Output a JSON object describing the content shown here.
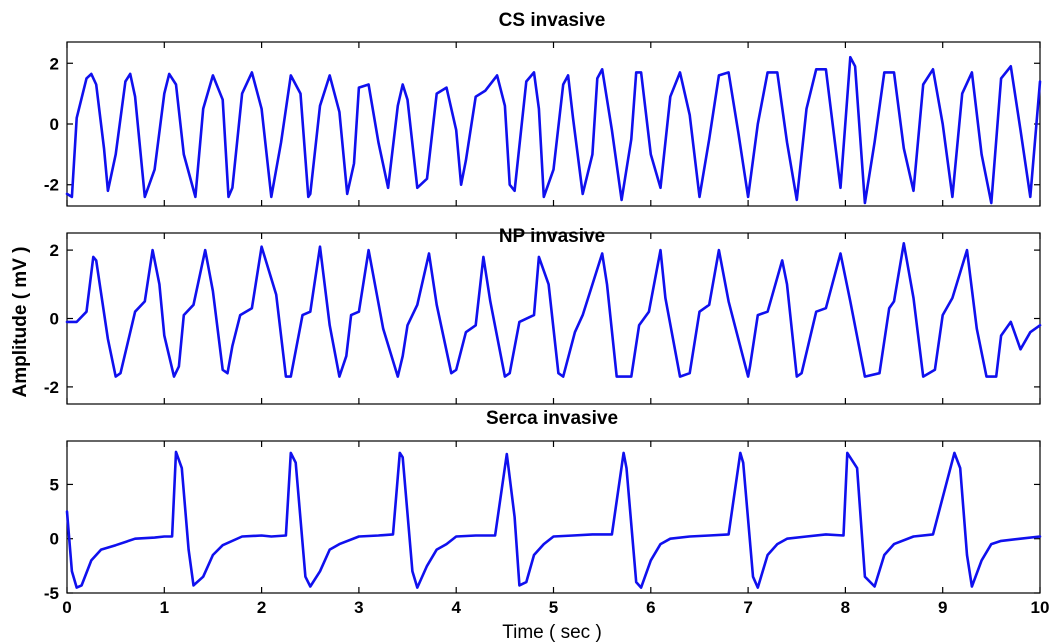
{
  "chart_data": [
    {
      "type": "line",
      "title": "CS invasive",
      "xlim": [
        0,
        10
      ],
      "ylim": [
        -2.7,
        2.7
      ],
      "yticks": [
        2,
        0,
        -2
      ],
      "ytick_labels": [
        "2",
        "0",
        "-2"
      ],
      "xticks": [
        0,
        1,
        2,
        3,
        4,
        5,
        6,
        7,
        8,
        9,
        10
      ],
      "xtick_labels": [],
      "color": "#1010ee",
      "series": [
        {
          "x": [
            0,
            0.05,
            0.1,
            0.2,
            0.25,
            0.3,
            0.38,
            0.42,
            0.5,
            0.6,
            0.65,
            0.7,
            0.8,
            0.9,
            1.0,
            1.05,
            1.12,
            1.2,
            1.32,
            1.4,
            1.5,
            1.6,
            1.66,
            1.7,
            1.8,
            1.9,
            2.0,
            2.1,
            2.2,
            2.3,
            2.4,
            2.48,
            2.5,
            2.6,
            2.7,
            2.8,
            2.88,
            2.95,
            3.0,
            3.1,
            3.2,
            3.3,
            3.4,
            3.45,
            3.5,
            3.6,
            3.7,
            3.8,
            3.9,
            4.0,
            4.05,
            4.1,
            4.2,
            4.3,
            4.42,
            4.5,
            4.55,
            4.6,
            4.72,
            4.8,
            4.85,
            4.9,
            5.0,
            5.1,
            5.15,
            5.2,
            5.3,
            5.4,
            5.45,
            5.5,
            5.6,
            5.7,
            5.8,
            5.85,
            5.9,
            6.0,
            6.1,
            6.2,
            6.3,
            6.4,
            6.5,
            6.6,
            6.7,
            6.8,
            6.9,
            7.0,
            7.1,
            7.2,
            7.3,
            7.4,
            7.5,
            7.6,
            7.7,
            7.8,
            7.95,
            8.05,
            8.1,
            8.2,
            8.3,
            8.4,
            8.5,
            8.6,
            8.7,
            8.8,
            8.9,
            9.0,
            9.1,
            9.2,
            9.3,
            9.4,
            9.5,
            9.6,
            9.7,
            9.8,
            9.9,
            10.0
          ],
          "y": [
            -2.3,
            -2.4,
            0.2,
            1.5,
            1.65,
            1.3,
            -0.8,
            -2.2,
            -1.0,
            1.4,
            1.65,
            0.9,
            -2.4,
            -1.5,
            1.0,
            1.65,
            1.3,
            -1.0,
            -2.4,
            0.5,
            1.6,
            0.8,
            -2.4,
            -2.1,
            1.0,
            1.7,
            0.5,
            -2.4,
            -0.6,
            1.6,
            1.0,
            -2.4,
            -2.3,
            0.6,
            1.6,
            0.4,
            -2.3,
            -1.3,
            1.2,
            1.3,
            -0.6,
            -2.1,
            0.6,
            1.3,
            0.8,
            -2.1,
            -1.8,
            1.0,
            1.2,
            -0.2,
            -2.0,
            -1.2,
            0.9,
            1.1,
            1.6,
            0.6,
            -2.0,
            -2.2,
            1.4,
            1.7,
            0.5,
            -2.4,
            -1.5,
            1.3,
            1.6,
            0.2,
            -2.3,
            -1.0,
            1.5,
            1.8,
            -0.2,
            -2.5,
            -0.5,
            1.7,
            1.7,
            -1.0,
            -2.1,
            0.9,
            1.7,
            0.3,
            -2.4,
            -0.5,
            1.6,
            1.7,
            -0.3,
            -2.4,
            0.0,
            1.7,
            1.7,
            -0.6,
            -2.5,
            0.5,
            1.8,
            1.8,
            -2.1,
            2.2,
            1.9,
            -2.6,
            -0.6,
            1.7,
            1.7,
            -0.8,
            -2.2,
            1.3,
            1.8,
            0.0,
            -2.4,
            1.0,
            1.7,
            -1.0,
            -2.6,
            1.5,
            1.9,
            -0.2,
            -2.4,
            1.4
          ]
        }
      ]
    },
    {
      "type": "line",
      "title": "NP invasive",
      "xlim": [
        0,
        10
      ],
      "ylim": [
        -2.5,
        2.5
      ],
      "yticks": [
        2,
        0,
        -2
      ],
      "ytick_labels": [
        "2",
        "0",
        "-2"
      ],
      "xticks": [
        0,
        1,
        2,
        3,
        4,
        5,
        6,
        7,
        8,
        9,
        10
      ],
      "xtick_labels": [],
      "ylabel": "Amplitude ( mV )",
      "color": "#1010ee",
      "series": [
        {
          "x": [
            0,
            0.1,
            0.2,
            0.27,
            0.3,
            0.42,
            0.5,
            0.55,
            0.7,
            0.8,
            0.88,
            0.95,
            1.0,
            1.1,
            1.15,
            1.2,
            1.3,
            1.42,
            1.5,
            1.6,
            1.65,
            1.7,
            1.78,
            1.9,
            2.0,
            2.15,
            2.25,
            2.3,
            2.42,
            2.5,
            2.6,
            2.7,
            2.8,
            2.87,
            2.92,
            3.0,
            3.1,
            3.25,
            3.4,
            3.45,
            3.5,
            3.6,
            3.72,
            3.8,
            3.95,
            4.0,
            4.1,
            4.2,
            4.28,
            4.35,
            4.5,
            4.55,
            4.65,
            4.8,
            4.85,
            4.95,
            5.05,
            5.1,
            5.22,
            5.3,
            5.5,
            5.55,
            5.65,
            5.8,
            5.88,
            5.98,
            6.1,
            6.15,
            6.3,
            6.4,
            6.5,
            6.6,
            6.7,
            6.8,
            7.0,
            7.02,
            7.1,
            7.2,
            7.35,
            7.4,
            7.5,
            7.55,
            7.7,
            7.8,
            7.95,
            8.05,
            8.2,
            8.35,
            8.45,
            8.5,
            8.6,
            8.7,
            8.8,
            8.92,
            9.0,
            9.1,
            9.25,
            9.35,
            9.45,
            9.55,
            9.6,
            9.7,
            9.8,
            9.9,
            10.0
          ],
          "y": [
            -0.1,
            -0.1,
            0.2,
            1.8,
            1.7,
            -0.6,
            -1.7,
            -1.6,
            0.2,
            0.5,
            2.0,
            1.0,
            -0.5,
            -1.7,
            -1.4,
            0.1,
            0.4,
            2.0,
            0.8,
            -1.5,
            -1.6,
            -0.8,
            0.1,
            0.3,
            2.1,
            0.7,
            -1.7,
            -1.7,
            0.1,
            0.2,
            2.1,
            -0.2,
            -1.7,
            -1.1,
            0.1,
            0.2,
            2.0,
            -0.3,
            -1.7,
            -1.1,
            -0.2,
            0.4,
            1.9,
            0.4,
            -1.6,
            -1.5,
            -0.4,
            -0.2,
            1.8,
            0.5,
            -1.7,
            -1.6,
            -0.1,
            0.1,
            1.8,
            1.0,
            -1.6,
            -1.7,
            -0.4,
            0.1,
            1.9,
            1.0,
            -1.7,
            -1.7,
            -0.2,
            0.2,
            2.0,
            0.6,
            -1.7,
            -1.6,
            0.2,
            0.4,
            2.0,
            0.5,
            -1.7,
            -1.4,
            0.1,
            0.2,
            1.7,
            1.0,
            -1.7,
            -1.6,
            0.2,
            0.3,
            1.9,
            0.5,
            -1.7,
            -1.6,
            0.3,
            0.5,
            2.2,
            0.6,
            -1.7,
            -1.5,
            0.1,
            0.6,
            2.0,
            -0.3,
            -1.7,
            -1.7,
            -0.5,
            -0.1,
            -0.9,
            -0.4,
            -0.2
          ]
        }
      ]
    },
    {
      "type": "line",
      "title": "Serca invasive",
      "xlim": [
        0,
        10
      ],
      "ylim": [
        -5,
        9
      ],
      "yticks": [
        5,
        0,
        -5
      ],
      "ytick_labels": [
        "5",
        "0",
        "-5"
      ],
      "xticks": [
        0,
        1,
        2,
        3,
        4,
        5,
        6,
        7,
        8,
        9,
        10
      ],
      "xtick_labels": [
        "0",
        "1",
        "2",
        "3",
        "4",
        "5",
        "6",
        "7",
        "8",
        "9",
        "10"
      ],
      "xlabel": "Time ( sec )",
      "color": "#1010ee",
      "series": [
        {
          "x": [
            0,
            0.05,
            0.1,
            0.15,
            0.25,
            0.35,
            0.5,
            0.7,
            0.9,
            1.0,
            1.08,
            1.12,
            1.18,
            1.25,
            1.3,
            1.4,
            1.5,
            1.6,
            1.8,
            2.0,
            2.1,
            2.25,
            2.3,
            2.35,
            2.45,
            2.5,
            2.6,
            2.7,
            2.8,
            3.0,
            3.2,
            3.35,
            3.42,
            3.45,
            3.55,
            3.6,
            3.7,
            3.8,
            3.9,
            4.0,
            4.2,
            4.4,
            4.52,
            4.6,
            4.65,
            4.72,
            4.8,
            4.9,
            5.0,
            5.2,
            5.4,
            5.6,
            5.72,
            5.75,
            5.85,
            5.9,
            6.0,
            6.1,
            6.2,
            6.4,
            6.6,
            6.8,
            6.92,
            6.95,
            7.05,
            7.1,
            7.2,
            7.3,
            7.4,
            7.6,
            7.8,
            7.98,
            8.02,
            8.12,
            8.2,
            8.3,
            8.4,
            8.5,
            8.7,
            8.9,
            9.12,
            9.18,
            9.25,
            9.3,
            9.4,
            9.5,
            9.6,
            9.8,
            10.0
          ],
          "y": [
            2.5,
            -3.0,
            -4.5,
            -4.3,
            -2.0,
            -1.0,
            -0.6,
            0.0,
            0.1,
            0.2,
            0.2,
            8.0,
            6.5,
            -1.0,
            -4.3,
            -3.5,
            -1.5,
            -0.6,
            0.2,
            0.3,
            0.2,
            0.3,
            7.9,
            7.0,
            -3.5,
            -4.4,
            -3.0,
            -1.0,
            -0.5,
            0.2,
            0.3,
            0.4,
            7.9,
            7.5,
            -3.0,
            -4.5,
            -2.5,
            -1.0,
            -0.5,
            0.2,
            0.3,
            0.3,
            7.8,
            2.0,
            -4.3,
            -4.0,
            -1.5,
            -0.5,
            0.2,
            0.3,
            0.4,
            0.4,
            7.9,
            6.5,
            -4.0,
            -4.5,
            -2.0,
            -0.5,
            0.0,
            0.2,
            0.3,
            0.4,
            7.9,
            7.0,
            -3.5,
            -4.5,
            -1.5,
            -0.5,
            0.0,
            0.2,
            0.4,
            0.3,
            7.9,
            6.5,
            -3.5,
            -4.4,
            -1.5,
            -0.5,
            0.2,
            0.4,
            7.9,
            6.5,
            -1.5,
            -4.4,
            -2.0,
            -0.5,
            -0.2,
            0.0,
            0.2
          ]
        }
      ]
    }
  ]
}
